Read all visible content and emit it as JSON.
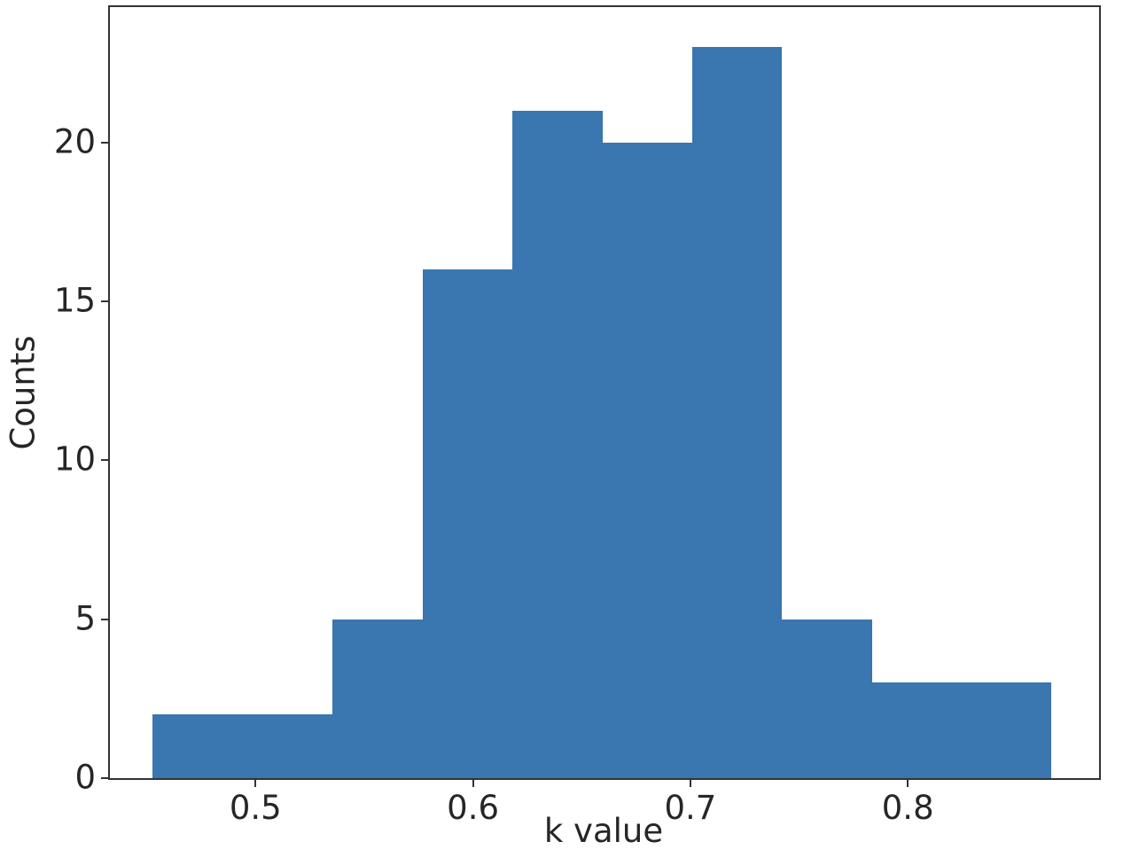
{
  "chart_data": {
    "type": "bar",
    "subtype": "histogram",
    "title": "",
    "xlabel": "k value",
    "ylabel": "Counts",
    "bin_edges": [
      0.4527,
      0.4941,
      0.5354,
      0.5768,
      0.6181,
      0.6595,
      0.7008,
      0.7422,
      0.7835,
      0.8249,
      0.8662
    ],
    "counts": [
      2,
      2,
      5,
      16,
      21,
      20,
      23,
      5,
      3,
      3
    ],
    "xticks": [
      0.5,
      0.6,
      0.7,
      0.8
    ],
    "yticks": [
      0,
      5,
      10,
      15,
      20
    ],
    "xlim": [
      0.433,
      0.888
    ],
    "ylim": [
      0,
      24.25
    ],
    "grid": false,
    "legend_visible": false,
    "bar_color": "#3a76af",
    "axis_color": "#333333",
    "text_color": "#262626",
    "background_color": "#ffffff"
  }
}
